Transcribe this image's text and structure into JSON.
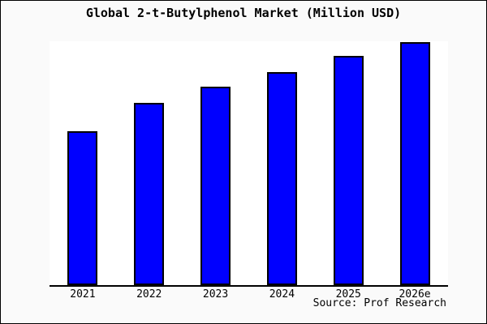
{
  "window": {
    "background": "#fafafa",
    "border_color": "#000000"
  },
  "chart_data": {
    "type": "bar",
    "title": "Global 2-t-Butylphenol Market (Million USD)",
    "categories": [
      "2021",
      "2022",
      "2023",
      "2024",
      "2025",
      "2026e"
    ],
    "values": [
      63.1,
      74.8,
      81.4,
      87.4,
      94.0,
      99.7
    ],
    "xlabel": "",
    "ylabel": "",
    "ylim": [
      0,
      100
    ],
    "grid": false,
    "legend": null,
    "bar_color": "#0000ff",
    "bar_border_color": "#000000",
    "axis_color": "#000000",
    "plot_background": "#ffffff"
  },
  "footer": {
    "source_label": "Source: Prof Research"
  }
}
